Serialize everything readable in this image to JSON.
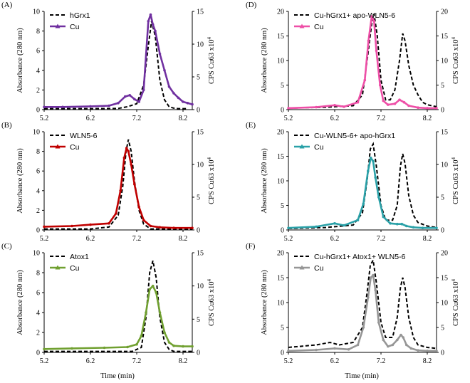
{
  "figure": {
    "x_axis_label": "Time (min)",
    "left_axis_label": "Absorbance (280 nm)",
    "right_axis_label": "CPS Cu63 x10",
    "right_axis_label_sup": "4"
  },
  "chart_data": [
    {
      "panel": "(A)",
      "type": "line",
      "xlim": [
        5.2,
        8.4
      ],
      "xticks": [
        "5.2",
        "6.2",
        "7.2",
        "8.2"
      ],
      "ylim_left": [
        0,
        10
      ],
      "yticks_left": [
        "0",
        "2",
        "4",
        "6",
        "8",
        "10"
      ],
      "ylim_right": [
        0,
        15
      ],
      "yticks_right": [
        "0",
        "5",
        "10",
        "15"
      ],
      "series": [
        {
          "name": "hGrx1",
          "axis": "left",
          "style": "dashed",
          "color": "#000000",
          "x": [
            5.2,
            6.2,
            6.8,
            7.0,
            7.2,
            7.35,
            7.45,
            7.52,
            7.6,
            7.7,
            7.8,
            7.9,
            8.0,
            8.1,
            8.3
          ],
          "y": [
            0.1,
            0.1,
            0.12,
            0.3,
            0.6,
            2.5,
            6.5,
            9.0,
            7.5,
            3.0,
            1.0,
            0.3,
            0.15,
            0.1,
            0.1
          ]
        },
        {
          "name": "Cu",
          "axis": "right",
          "style": "solid-marker",
          "color": "#7030a0",
          "x": [
            5.2,
            5.6,
            6.2,
            6.6,
            6.8,
            6.95,
            7.05,
            7.15,
            7.25,
            7.35,
            7.45,
            7.5,
            7.55,
            7.6,
            7.7,
            7.8,
            7.9,
            8.0,
            8.1,
            8.2,
            8.3,
            8.4
          ],
          "y": [
            0.4,
            0.4,
            0.5,
            0.6,
            1.0,
            2.0,
            2.2,
            1.6,
            1.2,
            3.0,
            13.5,
            14.5,
            13.0,
            12.0,
            8.5,
            6.0,
            3.5,
            2.5,
            1.8,
            1.2,
            1.0,
            0.8
          ]
        }
      ]
    },
    {
      "panel": "(B)",
      "type": "line",
      "xlim": [
        5.2,
        8.4
      ],
      "xticks": [
        "5.2",
        "6.2",
        "7.2",
        "8.2"
      ],
      "ylim_left": [
        0,
        10
      ],
      "yticks_left": [
        "0",
        "2",
        "4",
        "6",
        "8",
        "10"
      ],
      "ylim_right": [
        0,
        15
      ],
      "yticks_right": [
        "0",
        "5",
        "10",
        "15"
      ],
      "series": [
        {
          "name": "WLN5-6",
          "axis": "left",
          "style": "dashed",
          "color": "#000000",
          "x": [
            5.2,
            6.2,
            6.6,
            6.8,
            6.9,
            6.97,
            7.02,
            7.08,
            7.15,
            7.25,
            7.35,
            7.5,
            8.4
          ],
          "y": [
            0.1,
            0.1,
            0.3,
            1.5,
            4.5,
            8.0,
            9.2,
            8.0,
            5.0,
            2.0,
            0.6,
            0.1,
            0.1
          ]
        },
        {
          "name": "Cu",
          "axis": "right",
          "style": "solid-marker",
          "color": "#c00000",
          "x": [
            5.2,
            5.8,
            6.2,
            6.6,
            6.75,
            6.85,
            6.93,
            6.98,
            7.02,
            7.08,
            7.15,
            7.25,
            7.35,
            7.5,
            7.7,
            8.0,
            8.4
          ],
          "y": [
            0.5,
            0.6,
            0.8,
            1.0,
            2.5,
            6.0,
            11.0,
            12.5,
            12.0,
            10.0,
            7.0,
            3.5,
            1.5,
            0.6,
            0.4,
            0.3,
            0.3
          ]
        }
      ]
    },
    {
      "panel": "(C)",
      "type": "line",
      "xlim": [
        5.2,
        8.4
      ],
      "xticks": [
        "5.2",
        "6.2",
        "7.2",
        "8.2"
      ],
      "ylim_left": [
        0,
        10
      ],
      "yticks_left": [
        "0",
        "2",
        "4",
        "6",
        "8",
        "10"
      ],
      "ylim_right": [
        0,
        15
      ],
      "yticks_right": [
        "0",
        "5",
        "10",
        "15"
      ],
      "series": [
        {
          "name": "Atox1",
          "axis": "left",
          "style": "dashed",
          "color": "#000000",
          "x": [
            5.2,
            6.2,
            7.1,
            7.3,
            7.4,
            7.48,
            7.55,
            7.62,
            7.7,
            7.8,
            7.9,
            8.0,
            8.4
          ],
          "y": [
            0.1,
            0.1,
            0.1,
            0.5,
            3.5,
            8.0,
            9.2,
            7.5,
            3.5,
            1.0,
            0.3,
            0.1,
            0.1
          ]
        },
        {
          "name": "Cu",
          "axis": "right",
          "style": "solid-marker",
          "color": "#70a030",
          "x": [
            5.2,
            5.8,
            6.5,
            7.0,
            7.2,
            7.3,
            7.4,
            7.48,
            7.55,
            7.62,
            7.7,
            7.8,
            7.9,
            8.0,
            8.2,
            8.4
          ],
          "y": [
            0.5,
            0.6,
            0.7,
            0.8,
            1.2,
            2.5,
            6.0,
            9.5,
            10.0,
            9.0,
            6.0,
            3.0,
            1.5,
            1.0,
            0.9,
            0.9
          ]
        }
      ]
    },
    {
      "panel": "(D)",
      "type": "line",
      "xlim": [
        5.2,
        8.4
      ],
      "xticks": [
        "5.2",
        "6.2",
        "7.2",
        "8.2"
      ],
      "ylim_left": [
        0,
        20
      ],
      "yticks_left": [
        "0",
        "5",
        "10",
        "15",
        "20"
      ],
      "ylim_right": [
        0,
        20
      ],
      "yticks_right": [
        "0",
        "5",
        "10",
        "15",
        "20"
      ],
      "series": [
        {
          "name": "Cu-hGrx1+ apo-WLN5-6",
          "axis": "left",
          "style": "dashed",
          "color": "#000000",
          "x": [
            5.2,
            6.0,
            6.6,
            6.8,
            6.9,
            7.0,
            7.05,
            7.12,
            7.2,
            7.3,
            7.4,
            7.5,
            7.6,
            7.67,
            7.72,
            7.8,
            7.9,
            8.0,
            8.1,
            8.2,
            8.4
          ],
          "y": [
            0.3,
            0.5,
            0.8,
            3.0,
            10.0,
            17.5,
            19.5,
            15.0,
            6.0,
            2.0,
            2.0,
            4.0,
            10.0,
            15.5,
            14.0,
            9.0,
            5.0,
            3.0,
            1.5,
            1.0,
            0.6
          ]
        },
        {
          "name": "Cu",
          "axis": "right",
          "style": "solid-marker",
          "color": "#ee4fa7",
          "x": [
            5.2,
            5.8,
            6.2,
            6.4,
            6.7,
            6.85,
            6.93,
            7.0,
            7.05,
            7.1,
            7.18,
            7.25,
            7.35,
            7.5,
            7.6,
            7.7,
            7.8,
            8.0,
            8.2,
            8.4
          ],
          "y": [
            0.3,
            0.5,
            0.9,
            0.6,
            1.5,
            6.0,
            14.0,
            19.0,
            18.0,
            12.0,
            5.0,
            1.8,
            1.0,
            1.2,
            2.0,
            1.5,
            0.8,
            0.4,
            0.3,
            0.3
          ]
        }
      ]
    },
    {
      "panel": "(E)",
      "type": "line",
      "xlim": [
        5.2,
        8.4
      ],
      "xticks": [
        "5.2",
        "6.2",
        "7.2",
        "8.2"
      ],
      "ylim_left": [
        0,
        20
      ],
      "yticks_left": [
        "0",
        "5",
        "10",
        "15",
        "20"
      ],
      "ylim_right": [
        0,
        15
      ],
      "yticks_right": [
        "0",
        "5",
        "10",
        "15"
      ],
      "series": [
        {
          "name": "Cu-WLN5-6+ apo-hGrx1",
          "axis": "left",
          "style": "dashed",
          "color": "#000000",
          "x": [
            5.2,
            6.0,
            6.6,
            6.8,
            6.9,
            6.97,
            7.03,
            7.1,
            7.2,
            7.3,
            7.45,
            7.55,
            7.62,
            7.67,
            7.72,
            7.8,
            7.9,
            8.0,
            8.2,
            8.4
          ],
          "y": [
            0.3,
            0.5,
            1.0,
            3.5,
            10.0,
            16.5,
            17.5,
            13.0,
            5.0,
            2.0,
            2.0,
            5.0,
            13.0,
            15.5,
            13.5,
            7.0,
            3.0,
            1.5,
            0.8,
            0.5
          ]
        },
        {
          "name": "Cu",
          "axis": "right",
          "style": "solid-marker",
          "color": "#2aa1a8",
          "x": [
            5.2,
            5.8,
            6.2,
            6.4,
            6.7,
            6.82,
            6.92,
            6.98,
            7.03,
            7.08,
            7.15,
            7.25,
            7.4,
            7.55,
            7.65,
            7.75,
            7.9,
            8.1,
            8.4
          ],
          "y": [
            0.3,
            0.5,
            1.0,
            0.7,
            1.5,
            4.0,
            9.0,
            11.0,
            10.5,
            8.0,
            5.0,
            2.0,
            1.0,
            0.9,
            0.9,
            0.6,
            0.4,
            0.3,
            0.3
          ]
        }
      ]
    },
    {
      "panel": "(F)",
      "type": "line",
      "xlim": [
        5.2,
        8.4
      ],
      "xticks": [
        "5.2",
        "6.2",
        "7.2",
        "8.2"
      ],
      "ylim_left": [
        0,
        20
      ],
      "yticks_left": [
        "0",
        "5",
        "10",
        "15",
        "20"
      ],
      "ylim_right": [
        0,
        20
      ],
      "yticks_right": [
        "0",
        "5",
        "10",
        "15",
        "20"
      ],
      "series": [
        {
          "name": "Cu-hGrx1+ Atox1+ WLN5-6",
          "axis": "left",
          "style": "dashed",
          "color": "#000000",
          "x": [
            5.2,
            5.8,
            6.1,
            6.3,
            6.6,
            6.8,
            6.9,
            6.97,
            7.03,
            7.1,
            7.2,
            7.3,
            7.45,
            7.55,
            7.62,
            7.67,
            7.72,
            7.8,
            7.9,
            8.0,
            8.2,
            8.4
          ],
          "y": [
            1.0,
            1.5,
            2.0,
            1.5,
            2.0,
            5.0,
            12.0,
            17.5,
            18.5,
            14.0,
            6.0,
            3.0,
            3.0,
            7.0,
            13.0,
            15.0,
            13.0,
            7.0,
            3.0,
            1.5,
            1.0,
            0.8
          ]
        },
        {
          "name": "Cu",
          "axis": "right",
          "style": "solid-marker",
          "color": "#969696",
          "x": [
            5.2,
            5.8,
            6.2,
            6.5,
            6.7,
            6.82,
            6.92,
            6.98,
            7.03,
            7.08,
            7.15,
            7.25,
            7.35,
            7.45,
            7.55,
            7.63,
            7.68,
            7.75,
            7.85,
            8.0,
            8.2,
            8.4
          ],
          "y": [
            0.3,
            0.5,
            0.8,
            0.6,
            1.5,
            5.0,
            11.0,
            15.0,
            15.5,
            12.5,
            6.0,
            2.5,
            1.2,
            1.5,
            2.5,
            3.5,
            3.0,
            1.5,
            0.8,
            0.4,
            0.3,
            0.3
          ]
        }
      ]
    }
  ]
}
